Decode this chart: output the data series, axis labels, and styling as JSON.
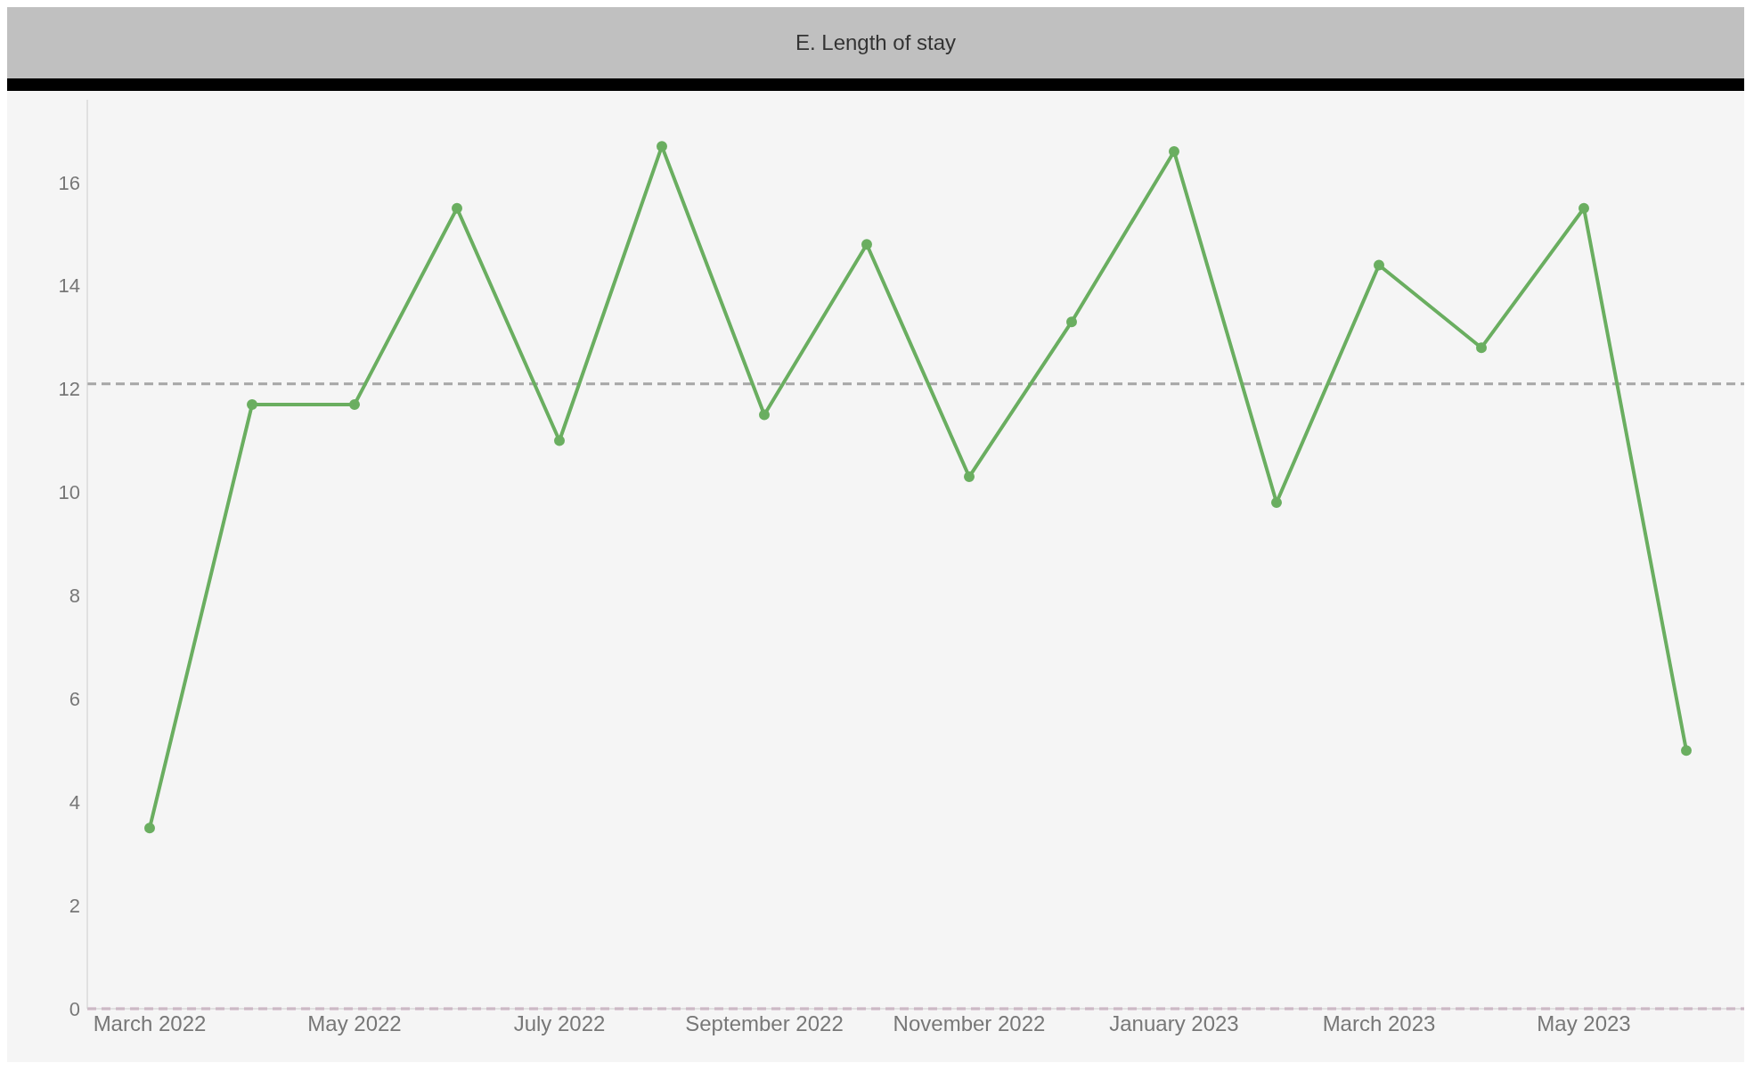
{
  "chart_data": {
    "type": "line",
    "title": "E. Length of stay",
    "categories": [
      "March 2022",
      null,
      "May 2022",
      null,
      "July 2022",
      null,
      "September 2022",
      null,
      "November 2022",
      null,
      "January 2023",
      null,
      "March 2023",
      null,
      "May 2023",
      null
    ],
    "series": [
      {
        "color": "#6aae60",
        "values": [
          3.5,
          11.7,
          11.7,
          15.5,
          11.0,
          16.7,
          11.5,
          14.8,
          10.3,
          13.3,
          16.6,
          9.8,
          14.4,
          12.8,
          15.5,
          5.0
        ]
      }
    ],
    "ylim": [
      0,
      17.6
    ],
    "yticks": [
      0,
      2,
      4,
      6,
      8,
      10,
      12,
      14,
      16
    ],
    "ref_lines": [
      {
        "axis": "y",
        "value": 12.1,
        "color": "#a6a6a6",
        "line_style": "dashed"
      },
      {
        "axis": "y",
        "value": 0,
        "color": "#c9a8bd",
        "line_style": "dashed"
      }
    ],
    "marker": "circle",
    "line_style": "solid",
    "grid": false,
    "legend": false
  }
}
